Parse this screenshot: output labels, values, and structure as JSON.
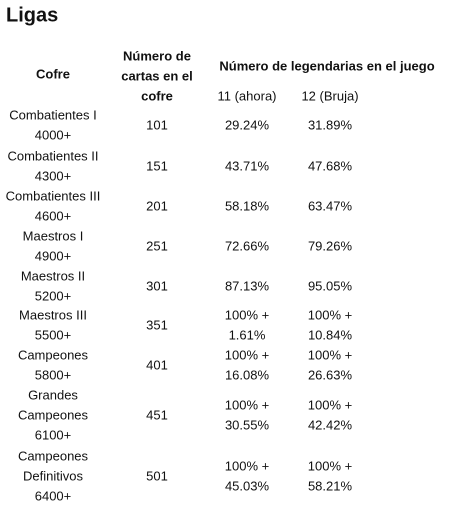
{
  "title": "Ligas",
  "table": {
    "header": {
      "cofre": "Cofre",
      "cartas": [
        "Número de",
        "cartas en el",
        "cofre"
      ],
      "legendarias": "Número de legendarias en el juego",
      "n11": "11 (ahora)",
      "n12": "12 (Bruja)"
    },
    "rows": [
      {
        "cofre": [
          "Combatientes I",
          "4000+"
        ],
        "cartas": "101",
        "n11": [
          "29.24%"
        ],
        "n12": [
          "31.89%"
        ]
      },
      {
        "cofre": [
          "Combatientes II",
          "4300+"
        ],
        "cartas": "151",
        "n11": [
          "43.71%"
        ],
        "n12": [
          "47.68%"
        ]
      },
      {
        "cofre": [
          "Combatientes III",
          "4600+"
        ],
        "cartas": "201",
        "n11": [
          "58.18%"
        ],
        "n12": [
          "63.47%"
        ]
      },
      {
        "cofre": [
          "Maestros I",
          "4900+"
        ],
        "cartas": "251",
        "n11": [
          "72.66%"
        ],
        "n12": [
          "79.26%"
        ]
      },
      {
        "cofre": [
          "Maestros II",
          "5200+"
        ],
        "cartas": "301",
        "n11": [
          "87.13%"
        ],
        "n12": [
          "95.05%"
        ]
      },
      {
        "cofre": [
          "Maestros III",
          "5500+"
        ],
        "cartas": "351",
        "n11": [
          "100% +",
          "1.61%"
        ],
        "n12": [
          "100% +",
          "10.84%"
        ]
      },
      {
        "cofre": [
          "Campeones",
          "5800+"
        ],
        "cartas": "401",
        "n11": [
          "100% +",
          "16.08%"
        ],
        "n12": [
          "100% +",
          "26.63%"
        ]
      },
      {
        "cofre": [
          "Grandes",
          "Campeones",
          "6100+"
        ],
        "cartas": "451",
        "n11": [
          "100% +",
          "30.55%"
        ],
        "n12": [
          "100% +",
          "42.42%"
        ]
      },
      {
        "cofre": [
          "Campeones",
          "Definitivos",
          "6400+"
        ],
        "cartas": "501",
        "n11": [
          "100% +",
          "45.03%"
        ],
        "n12": [
          "100% +",
          "58.21%"
        ]
      }
    ]
  }
}
